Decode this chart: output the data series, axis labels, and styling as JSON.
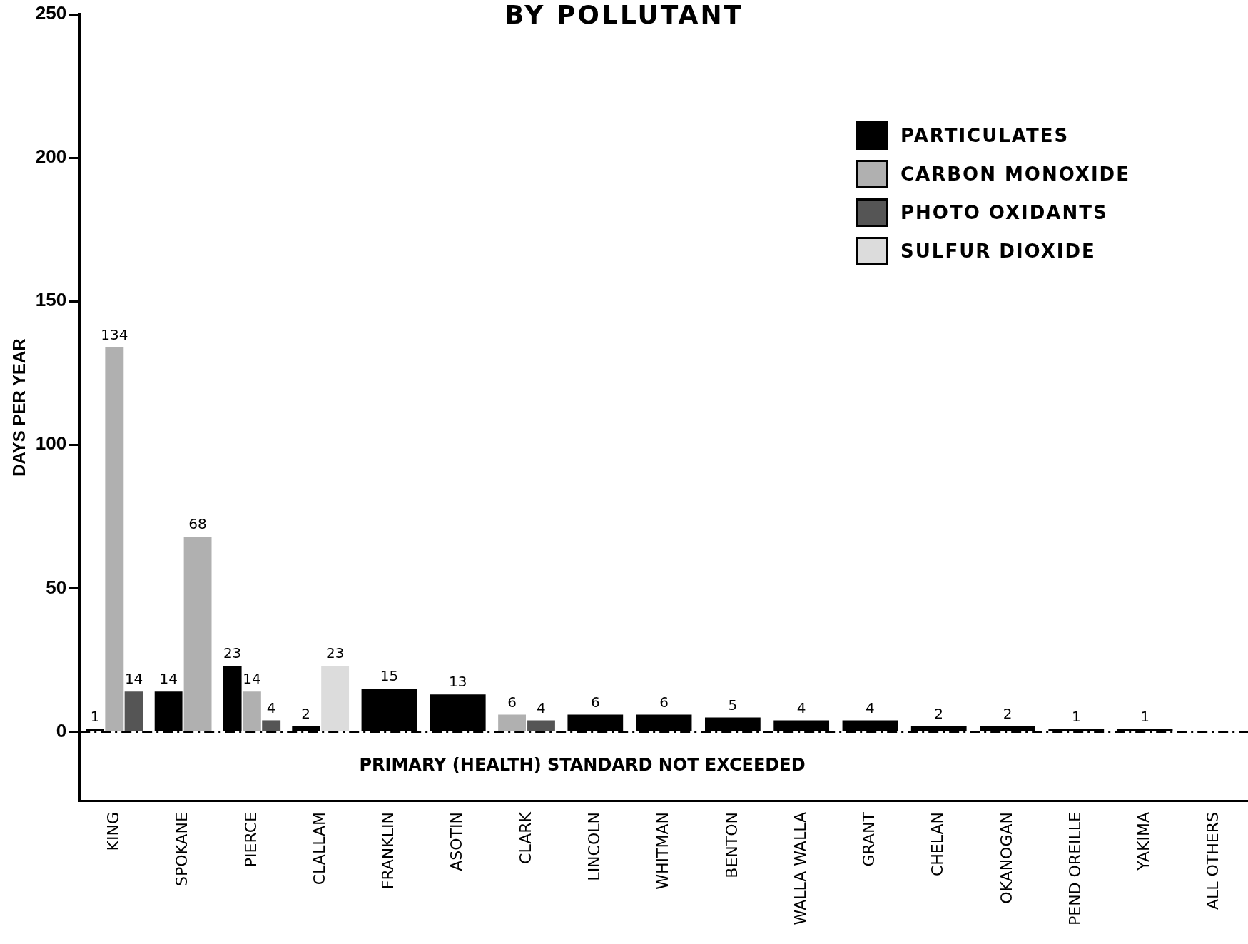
{
  "chart_data": {
    "type": "bar",
    "title": "BY POLLUTANT",
    "ylabel": "DAYS PER YEAR",
    "categories": [
      "KING",
      "SPOKANE",
      "PIERCE",
      "CLALLAM",
      "FRANKLIN",
      "ASOTIN",
      "CLARK",
      "LINCOLN",
      "WHITMAN",
      "BENTON",
      "WALLA WALLA",
      "GRANT",
      "CHELAN",
      "OKANOGAN",
      "PEND OREILLE",
      "YAKIMA",
      "ALL OTHERS"
    ],
    "series": [
      {
        "name": "PARTICULATES",
        "color": "#000000",
        "values": [
          1,
          14,
          23,
          2,
          15,
          13,
          null,
          6,
          6,
          5,
          4,
          4,
          2,
          2,
          1,
          1,
          null
        ]
      },
      {
        "name": "CARBON MONOXIDE",
        "color": "#b0b0b0",
        "values": [
          134,
          68,
          14,
          null,
          null,
          null,
          6,
          null,
          null,
          null,
          null,
          null,
          null,
          null,
          null,
          null,
          null
        ]
      },
      {
        "name": "PHOTO OXIDANTS",
        "color": "#555555",
        "values": [
          14,
          null,
          4,
          null,
          null,
          null,
          4,
          null,
          null,
          null,
          null,
          null,
          null,
          null,
          null,
          null,
          null
        ]
      },
      {
        "name": "SULFUR DIOXIDE",
        "color": "#dcdcdc",
        "values": [
          null,
          null,
          null,
          23,
          null,
          null,
          null,
          null,
          null,
          null,
          null,
          null,
          null,
          null,
          null,
          null,
          null
        ]
      }
    ],
    "ylim": [
      -24,
      250
    ],
    "yticks": [
      0,
      50,
      100,
      150,
      200,
      250
    ],
    "grid": false,
    "legend": "top right",
    "data_labels": true,
    "ref_lines": [
      {
        "axis": "y",
        "value": 0,
        "line_style": "dashed"
      }
    ],
    "annotations": [
      "PRIMARY (HEALTH) STANDARD NOT EXCEEDED"
    ]
  }
}
